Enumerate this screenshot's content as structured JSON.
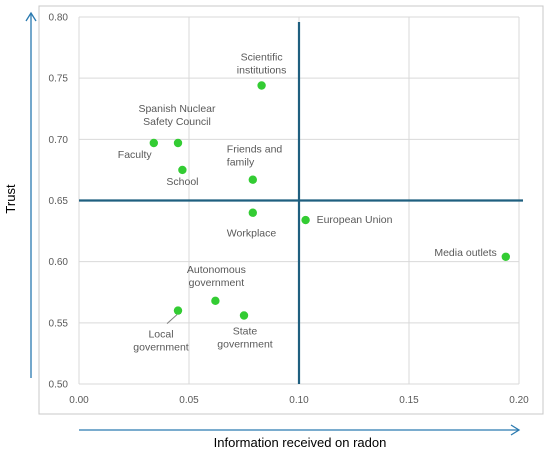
{
  "chart_data": {
    "type": "scatter",
    "xlabel": "Information received on radon",
    "ylabel": "Trust",
    "xlim": [
      0.0,
      0.2
    ],
    "ylim": [
      0.5,
      0.8
    ],
    "x_ticks": [
      "0.00",
      "0.05",
      "0.10",
      "0.15",
      "0.20"
    ],
    "y_ticks": [
      "0.50",
      "0.55",
      "0.60",
      "0.65",
      "0.70",
      "0.75",
      "0.80"
    ],
    "grid": true,
    "reference_lines": {
      "x": 0.1,
      "y": 0.65
    },
    "points": [
      {
        "label": "Scientific\ninstitutions",
        "x": 0.083,
        "y": 0.744
      },
      {
        "label": "Spanish Nuclear\nSafety Council",
        "x": 0.045,
        "y": 0.697
      },
      {
        "label": "Faculty",
        "x": 0.034,
        "y": 0.697
      },
      {
        "label": "School",
        "x": 0.047,
        "y": 0.675
      },
      {
        "label": "Friends and\nfamily",
        "x": 0.079,
        "y": 0.667
      },
      {
        "label": "Workplace",
        "x": 0.079,
        "y": 0.64
      },
      {
        "label": "European Union",
        "x": 0.103,
        "y": 0.634
      },
      {
        "label": "Media outlets",
        "x": 0.194,
        "y": 0.604
      },
      {
        "label": "Autonomous\ngovernment",
        "x": 0.062,
        "y": 0.568
      },
      {
        "label": "Local\ngovernment",
        "x": 0.045,
        "y": 0.56
      },
      {
        "label": "State\ngovernment",
        "x": 0.075,
        "y": 0.556
      }
    ]
  },
  "colors": {
    "point": "#33cc33",
    "reference_line": "#1f5f7f",
    "axis_arrow": "#2a7ab0",
    "grid": "#d9d9d9",
    "frame": "#c8c8c8"
  }
}
